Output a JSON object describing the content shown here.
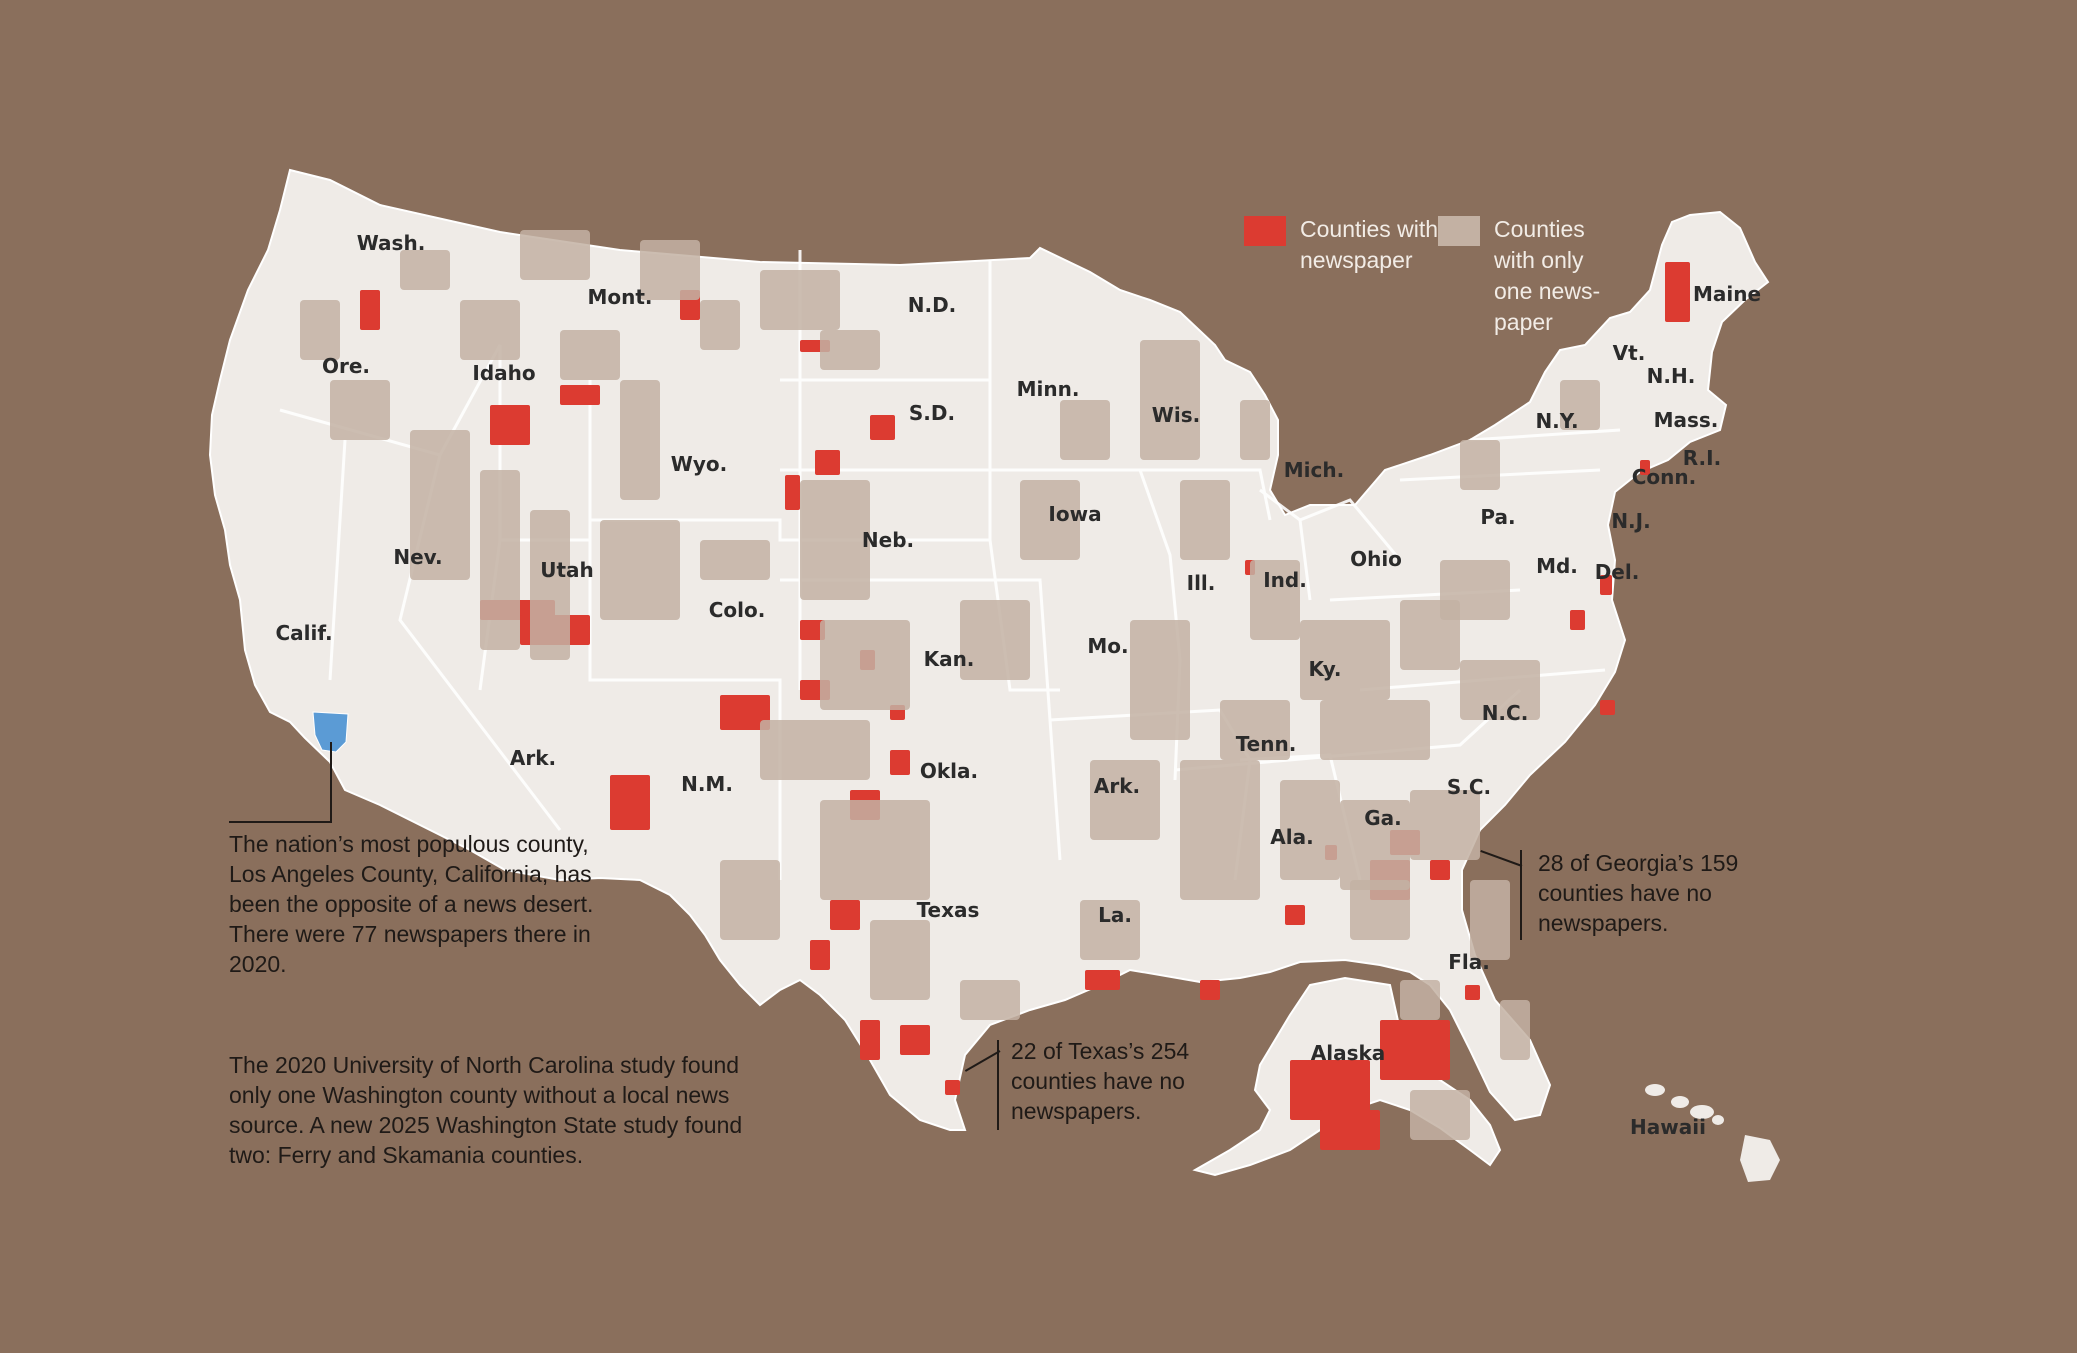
{
  "colors": {
    "background": "#8a6f5c",
    "land": "#efebe7",
    "no_newspaper": "#dc3b31",
    "one_newspaper": "#c3b1a3",
    "los_angeles": "#5b9bd5",
    "borders": "#ffffff"
  },
  "legend": {
    "no_newspaper": "Counties with no newspaper",
    "one_newspaper": "Counties with only one news-paper"
  },
  "states": [
    {
      "id": "wash",
      "label": "Wash."
    },
    {
      "id": "ore",
      "label": "Ore."
    },
    {
      "id": "calif",
      "label": "Calif."
    },
    {
      "id": "idaho",
      "label": "Idaho"
    },
    {
      "id": "nev",
      "label": "Nev."
    },
    {
      "id": "mont",
      "label": "Mont."
    },
    {
      "id": "wyo",
      "label": "Wyo."
    },
    {
      "id": "utah",
      "label": "Utah"
    },
    {
      "id": "colo",
      "label": "Colo."
    },
    {
      "id": "ariz",
      "label": "Ark."
    },
    {
      "id": "nm",
      "label": "N.M."
    },
    {
      "id": "nd",
      "label": "N.D."
    },
    {
      "id": "sd",
      "label": "S.D."
    },
    {
      "id": "neb",
      "label": "Neb."
    },
    {
      "id": "kan",
      "label": "Kan."
    },
    {
      "id": "okla",
      "label": "Okla."
    },
    {
      "id": "texas",
      "label": "Texas"
    },
    {
      "id": "minn",
      "label": "Minn."
    },
    {
      "id": "iowa",
      "label": "Iowa"
    },
    {
      "id": "mo",
      "label": "Mo."
    },
    {
      "id": "ark",
      "label": "Ark."
    },
    {
      "id": "la",
      "label": "La."
    },
    {
      "id": "wis",
      "label": "Wis."
    },
    {
      "id": "ill",
      "label": "Ill."
    },
    {
      "id": "mich",
      "label": "Mich."
    },
    {
      "id": "ind",
      "label": "Ind."
    },
    {
      "id": "ohio",
      "label": "Ohio"
    },
    {
      "id": "ky",
      "label": "Ky."
    },
    {
      "id": "tenn",
      "label": "Tenn."
    },
    {
      "id": "ala",
      "label": "Ala."
    },
    {
      "id": "ga",
      "label": "Ga."
    },
    {
      "id": "fla",
      "label": "Fla."
    },
    {
      "id": "sc",
      "label": "S.C."
    },
    {
      "id": "nc",
      "label": "N.C."
    },
    {
      "id": "pa",
      "label": "Pa."
    },
    {
      "id": "ny",
      "label": "N.Y."
    },
    {
      "id": "md",
      "label": "Md."
    },
    {
      "id": "del",
      "label": "Del."
    },
    {
      "id": "nj",
      "label": "N.J."
    },
    {
      "id": "conn",
      "label": "Conn."
    },
    {
      "id": "ri",
      "label": "R.I."
    },
    {
      "id": "mass",
      "label": "Mass."
    },
    {
      "id": "vt",
      "label": "Vt."
    },
    {
      "id": "nh",
      "label": "N.H."
    },
    {
      "id": "maine",
      "label": "Maine"
    },
    {
      "id": "alaska",
      "label": "Alaska"
    },
    {
      "id": "hawaii",
      "label": "Hawaii"
    }
  ],
  "annotations": {
    "la_county": "The nation’s most populous county, Los Angeles County, California, has been the opposite of a news desert. There were 77 newspapers there in 2020.",
    "washington": "The 2020 University of North Carolina study found only one Washington county without a local news source. A new 2025 Washington State study found two: Ferry and Skamania counties.",
    "georgia": "28 of Georgia’s 159 counties have no newspapers.",
    "texas": "22 of Texas’s 254 counties have no newspapers."
  }
}
